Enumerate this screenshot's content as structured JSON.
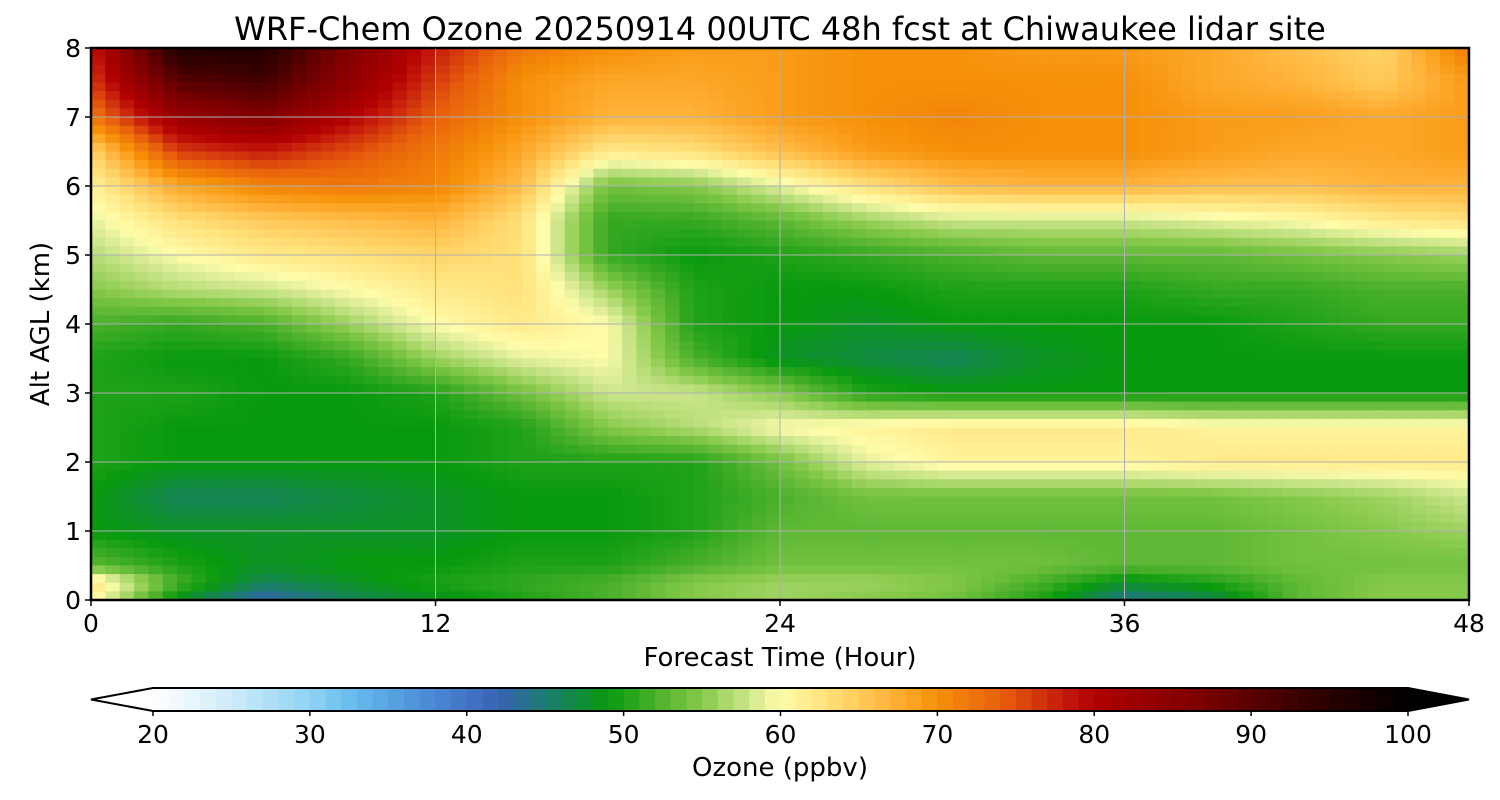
{
  "chart_data": {
    "type": "heatmap",
    "title": "WRF-Chem Ozone  20250914 00UTC 48h fcst at Chiwaukee lidar site",
    "xlabel": "Forecast Time (Hour)",
    "ylabel": "Alt AGL (km)",
    "xlim": [
      0,
      48
    ],
    "ylim": [
      0,
      8
    ],
    "xticks": [
      0,
      12,
      24,
      36,
      48
    ],
    "yticks": [
      0,
      1,
      2,
      3,
      4,
      5,
      6,
      7,
      8
    ],
    "xtick_labels": [
      "0",
      "12",
      "24",
      "36",
      "48"
    ],
    "ytick_labels": [
      "0",
      "1",
      "2",
      "3",
      "4",
      "5",
      "6",
      "7",
      "8"
    ],
    "grid": true,
    "z_units": "ppbv",
    "x": [
      0,
      3,
      6,
      9,
      12,
      15,
      18,
      21,
      24,
      27,
      30,
      33,
      36,
      39,
      42,
      45,
      48
    ],
    "y": [
      0,
      0.25,
      0.5,
      1,
      1.5,
      2,
      2.5,
      3,
      3.5,
      4,
      4.5,
      5,
      5.5,
      6,
      6.5,
      7,
      7.5,
      8
    ],
    "z": [
      [
        61,
        48,
        42,
        46,
        48,
        50,
        52,
        55,
        56,
        55,
        54,
        50,
        44,
        46,
        53,
        55,
        55
      ],
      [
        63,
        52,
        46,
        48,
        50,
        51,
        52,
        55,
        56,
        56,
        55,
        52,
        48,
        50,
        53,
        55,
        55
      ],
      [
        53,
        50,
        48,
        49,
        49,
        50,
        50,
        52,
        54,
        54,
        54,
        54,
        53,
        53,
        54,
        54,
        54
      ],
      [
        49,
        48,
        48,
        48,
        48,
        49,
        49,
        50,
        53,
        53,
        53,
        53,
        53,
        53,
        54,
        55,
        56
      ],
      [
        49,
        46,
        46,
        47,
        48,
        49,
        49,
        50,
        52,
        54,
        54,
        54,
        54,
        54,
        55,
        56,
        58
      ],
      [
        50,
        49,
        49,
        49,
        49,
        50,
        50,
        50,
        54,
        59,
        61,
        61,
        61,
        62,
        62,
        62,
        62
      ],
      [
        50,
        49,
        49,
        49,
        49,
        50,
        55,
        57,
        60,
        61,
        62,
        62,
        62,
        61,
        61,
        61,
        61
      ],
      [
        50,
        50,
        49,
        49,
        50,
        54,
        58,
        58,
        55,
        50,
        49,
        49,
        49,
        49,
        49,
        49,
        49
      ],
      [
        50,
        49,
        49,
        51,
        56,
        59,
        60,
        52,
        48,
        47,
        46,
        48,
        49,
        49,
        49,
        49,
        49
      ],
      [
        52,
        51,
        52,
        56,
        60,
        62,
        60,
        50,
        49,
        48,
        49,
        49,
        49,
        49,
        50,
        51,
        51
      ],
      [
        55,
        57,
        58,
        60,
        62,
        63,
        56,
        50,
        49,
        49,
        50,
        50,
        50,
        51,
        51,
        52,
        52
      ],
      [
        57,
        60,
        62,
        63,
        64,
        63,
        51,
        49,
        50,
        51,
        52,
        53,
        53,
        53,
        54,
        55,
        56
      ],
      [
        59,
        63,
        65,
        66,
        67,
        63,
        51,
        51,
        53,
        56,
        58,
        58,
        58,
        59,
        60,
        62,
        63
      ],
      [
        61,
        68,
        71,
        72,
        71,
        66,
        54,
        55,
        59,
        63,
        66,
        67,
        67,
        66,
        66,
        67,
        67
      ],
      [
        64,
        76,
        78,
        75,
        72,
        68,
        62,
        63,
        66,
        69,
        70,
        70,
        70,
        69,
        68,
        68,
        69
      ],
      [
        72,
        83,
        86,
        80,
        74,
        70,
        67,
        67,
        69,
        70,
        71,
        70,
        70,
        69,
        69,
        68,
        69
      ],
      [
        76,
        90,
        92,
        84,
        76,
        70,
        68,
        68,
        69,
        70,
        70,
        70,
        70,
        68,
        67,
        65,
        69
      ],
      [
        78,
        96,
        96,
        86,
        78,
        72,
        70,
        69,
        69,
        70,
        70,
        69,
        69,
        68,
        66,
        64,
        72
      ]
    ],
    "colorbar": {
      "label": "Ozone  (ppbv)",
      "min": 20,
      "max": 100,
      "ticks": [
        20,
        30,
        40,
        50,
        60,
        70,
        80,
        90,
        100
      ],
      "tick_labels": [
        "20",
        "30",
        "40",
        "50",
        "60",
        "70",
        "80",
        "90",
        "100"
      ],
      "extend": "both",
      "stops": [
        {
          "v": 20,
          "color": "#ffffff"
        },
        {
          "v": 24,
          "color": "#d9f0fb"
        },
        {
          "v": 30,
          "color": "#8fd3f4"
        },
        {
          "v": 33,
          "color": "#62b9ec"
        },
        {
          "v": 38,
          "color": "#4a86d4"
        },
        {
          "v": 42,
          "color": "#3a62b5"
        },
        {
          "v": 45,
          "color": "#1c7c72"
        },
        {
          "v": 49,
          "color": "#089a0e"
        },
        {
          "v": 52,
          "color": "#4ab02a"
        },
        {
          "v": 55,
          "color": "#86c94a"
        },
        {
          "v": 58,
          "color": "#cde68c"
        },
        {
          "v": 60,
          "color": "#fffcaa"
        },
        {
          "v": 63,
          "color": "#ffe17a"
        },
        {
          "v": 67,
          "color": "#ffb33a"
        },
        {
          "v": 70,
          "color": "#f69008"
        },
        {
          "v": 74,
          "color": "#e8600c"
        },
        {
          "v": 78,
          "color": "#c41a0c"
        },
        {
          "v": 80,
          "color": "#b00000"
        },
        {
          "v": 87,
          "color": "#7a0000"
        },
        {
          "v": 93,
          "color": "#3a0000"
        },
        {
          "v": 100,
          "color": "#000000"
        }
      ]
    }
  }
}
